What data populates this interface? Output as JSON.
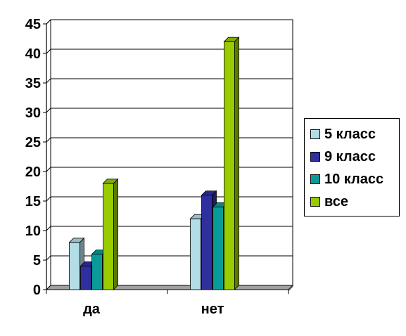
{
  "chart_data": {
    "type": "bar",
    "categories": [
      "да",
      "нет"
    ],
    "series": [
      {
        "name": "5 класс",
        "values": [
          8,
          12
        ],
        "color": "#b3dde6"
      },
      {
        "name": "9 класс",
        "values": [
          4,
          16
        ],
        "color": "#2f2f9f"
      },
      {
        "name": "10 класс",
        "values": [
          6,
          14
        ],
        "color": "#0a9b98"
      },
      {
        "name": "все",
        "values": [
          18,
          42
        ],
        "color": "#99cc00"
      }
    ],
    "ylim": [
      0,
      45
    ],
    "yticks": [
      "0",
      "5",
      "10",
      "15",
      "20",
      "25",
      "30",
      "35",
      "40",
      "45"
    ],
    "grid": true,
    "legend_position": "right",
    "title": "",
    "xlabel": "",
    "ylabel": ""
  }
}
